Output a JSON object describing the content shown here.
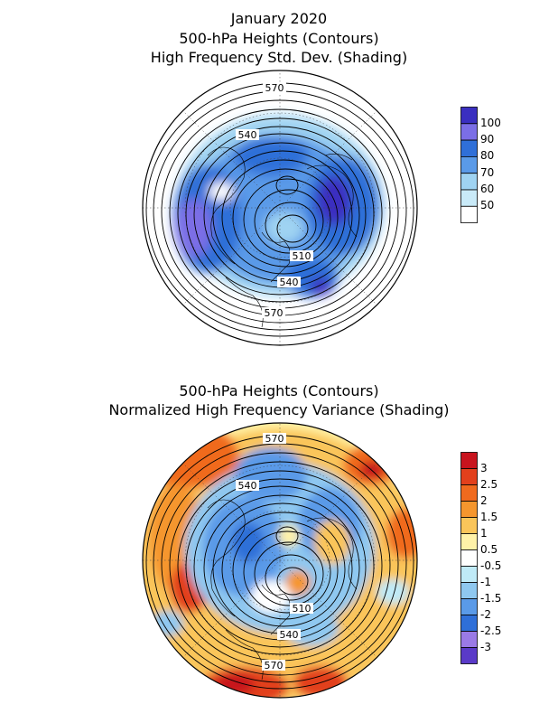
{
  "top_panel": {
    "title_lines": [
      "January 2020",
      "500-hPa Heights (Contours)",
      "High Frequency Std. Dev. (Shading)"
    ],
    "contour_labels": [
      "570",
      "540",
      "510",
      "540",
      "570"
    ],
    "colorbar": {
      "labels": [
        "100",
        "90",
        "80",
        "70",
        "60",
        "50"
      ],
      "colors": [
        "#3a2fc0",
        "#7b6ee6",
        "#2f6fd8",
        "#5a9ae8",
        "#9fd3f2",
        "#ffffff"
      ]
    }
  },
  "bottom_panel": {
    "title_lines": [
      "500-hPa Heights (Contours)",
      "Normalized High Frequency Variance (Shading)"
    ],
    "contour_labels": [
      "570",
      "540",
      "510",
      "540",
      "570"
    ],
    "colorbar": {
      "labels": [
        "3",
        "2.5",
        "2",
        "1.5",
        "1",
        "0.5",
        "-0.5",
        "-1",
        "-1.5",
        "-2",
        "-2.5",
        "-3"
      ],
      "colors": [
        "#c8141e",
        "#e2401c",
        "#f06a1e",
        "#f5962e",
        "#fac55a",
        "#fff2a8",
        "#ffffff",
        "#bfeaf7",
        "#8fc8f0",
        "#5a9ae8",
        "#2f6fd8",
        "#9a7ae6",
        "#5a3ac8"
      ]
    }
  }
}
